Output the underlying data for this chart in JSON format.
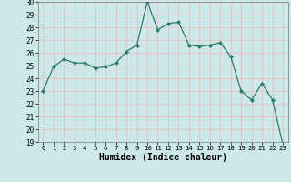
{
  "xlabel": "Humidex (Indice chaleur)",
  "x": [
    0,
    1,
    2,
    3,
    4,
    5,
    6,
    7,
    8,
    9,
    10,
    11,
    12,
    13,
    14,
    15,
    16,
    17,
    18,
    19,
    20,
    21,
    22,
    23
  ],
  "y": [
    23.0,
    24.9,
    25.5,
    25.2,
    25.2,
    24.8,
    24.9,
    25.2,
    26.1,
    26.6,
    30.0,
    27.8,
    28.3,
    28.4,
    26.6,
    26.5,
    26.6,
    26.8,
    25.7,
    23.0,
    22.3,
    23.6,
    22.3,
    18.8
  ],
  "ylim": [
    19,
    30
  ],
  "xlim": [
    -0.5,
    23.5
  ],
  "yticks": [
    19,
    20,
    21,
    22,
    23,
    24,
    25,
    26,
    27,
    28,
    29,
    30
  ],
  "xticks": [
    0,
    1,
    2,
    3,
    4,
    5,
    6,
    7,
    8,
    9,
    10,
    11,
    12,
    13,
    14,
    15,
    16,
    17,
    18,
    19,
    20,
    21,
    22,
    23
  ],
  "line_color": "#2d7a6e",
  "marker_color": "#2d7a6e",
  "bg_color": "#cde8e8",
  "grid_color_major": "#f0b8b8",
  "grid_color_minor": "#c8e0dc",
  "fig_bg": "#cde8e8"
}
